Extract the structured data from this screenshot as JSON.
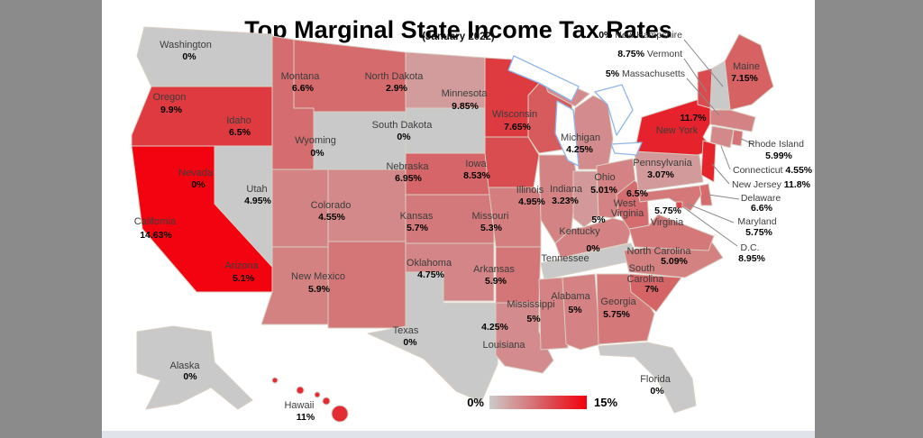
{
  "window": {
    "title": "Top Marginal State Income Tax Rates",
    "subtitle": "(January 2022)"
  },
  "legend": {
    "min_label": "0%",
    "max_label": "15%",
    "min_color": "#c9c9c9",
    "max_color": "#f4000c"
  },
  "chart_data": {
    "type": "choropleth-map",
    "title": "Top Marginal State Income Tax Rates",
    "subtitle": "(January 2022)",
    "region": "United States",
    "value_unit": "percent",
    "color_scale": {
      "min": 0,
      "max": 15,
      "min_color": "#c9c9c9",
      "max_color": "#f4000c"
    },
    "states": [
      {
        "name": "Washington",
        "rate": 0,
        "label": "0%"
      },
      {
        "name": "Oregon",
        "rate": 9.9,
        "label": "9.9%"
      },
      {
        "name": "California",
        "rate": 14.63,
        "label": "14.63%"
      },
      {
        "name": "Idaho",
        "rate": 6.5,
        "label": "6.5%"
      },
      {
        "name": "Nevada",
        "rate": 0,
        "label": "0%"
      },
      {
        "name": "Montana",
        "rate": 6.6,
        "label": "6.6%"
      },
      {
        "name": "Wyoming",
        "rate": 0,
        "label": "0%"
      },
      {
        "name": "Utah",
        "rate": 4.95,
        "label": "4.95%"
      },
      {
        "name": "Colorado",
        "rate": 4.55,
        "label": "4.55%"
      },
      {
        "name": "Arizona",
        "rate": 5.1,
        "label": "5.1%"
      },
      {
        "name": "New Mexico",
        "rate": 5.9,
        "label": "5.9%"
      },
      {
        "name": "North Dakota",
        "rate": 2.9,
        "label": "2.9%"
      },
      {
        "name": "South Dakota",
        "rate": 0,
        "label": "0%"
      },
      {
        "name": "Nebraska",
        "rate": 6.95,
        "label": "6.95%"
      },
      {
        "name": "Kansas",
        "rate": 5.7,
        "label": "5.7%"
      },
      {
        "name": "Oklahoma",
        "rate": 4.75,
        "label": "4.75%"
      },
      {
        "name": "Texas",
        "rate": 0,
        "label": "0%"
      },
      {
        "name": "Minnesota",
        "rate": 9.85,
        "label": "9.85%"
      },
      {
        "name": "Iowa",
        "rate": 8.53,
        "label": "8.53%"
      },
      {
        "name": "Missouri",
        "rate": 5.3,
        "label": "5.3%"
      },
      {
        "name": "Arkansas",
        "rate": 5.9,
        "label": "5.9%"
      },
      {
        "name": "Louisiana",
        "rate": 4.25,
        "label": "4.25%"
      },
      {
        "name": "Wisconsin",
        "rate": 7.65,
        "label": "7.65%"
      },
      {
        "name": "Illinois",
        "rate": 4.95,
        "label": "4.95%"
      },
      {
        "name": "Michigan",
        "rate": 4.25,
        "label": "4.25%"
      },
      {
        "name": "Indiana",
        "rate": 3.23,
        "label": "3.23%"
      },
      {
        "name": "Ohio",
        "rate": 5.01,
        "label": "5.01%"
      },
      {
        "name": "Kentucky",
        "rate": 5,
        "label": "5%"
      },
      {
        "name": "Tennessee",
        "rate": 0,
        "label": "0%"
      },
      {
        "name": "Mississippi",
        "rate": 5,
        "label": "5%"
      },
      {
        "name": "Alabama",
        "rate": 5,
        "label": "5%"
      },
      {
        "name": "Georgia",
        "rate": 5.75,
        "label": "5.75%"
      },
      {
        "name": "Florida",
        "rate": 0,
        "label": "0%"
      },
      {
        "name": "South Carolina",
        "rate": 7,
        "label": "7%"
      },
      {
        "name": "North Carolina",
        "rate": 5.09,
        "label": "5.09%"
      },
      {
        "name": "Virginia",
        "rate": 5.75,
        "label": "5.75%"
      },
      {
        "name": "West Virginia",
        "rate": 6.5,
        "label": "6.5%"
      },
      {
        "name": "Pennsylvania",
        "rate": 3.07,
        "label": "3.07%"
      },
      {
        "name": "New York",
        "rate": 11.7,
        "label": "11.7%"
      },
      {
        "name": "Maine",
        "rate": 7.15,
        "label": "7.15%"
      },
      {
        "name": "New Hampshire",
        "rate": 0,
        "label": "0%"
      },
      {
        "name": "Vermont",
        "rate": 8.75,
        "label": "8.75%"
      },
      {
        "name": "Massachusetts",
        "rate": 5,
        "label": "5%"
      },
      {
        "name": "Rhode Island",
        "rate": 5.99,
        "label": "5.99%"
      },
      {
        "name": "Connecticut",
        "rate": 4.55,
        "label": "4.55%"
      },
      {
        "name": "New Jersey",
        "rate": 11.8,
        "label": "11.8%"
      },
      {
        "name": "Delaware",
        "rate": 6.6,
        "label": "6.6%"
      },
      {
        "name": "Maryland",
        "rate": 5.75,
        "label": "5.75%"
      },
      {
        "name": "D.C.",
        "rate": 8.95,
        "label": "8.95%"
      },
      {
        "name": "Alaska",
        "rate": 0,
        "label": "0%"
      },
      {
        "name": "Hawaii",
        "rate": 11,
        "label": "11%"
      }
    ]
  }
}
